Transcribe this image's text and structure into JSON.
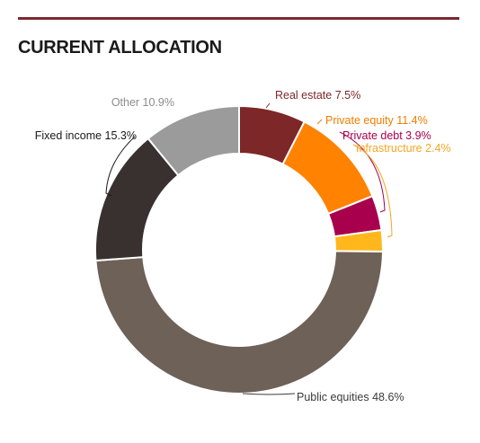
{
  "header": {
    "title": "CURRENT ALLOCATION"
  },
  "chart_data": {
    "type": "pie",
    "title": "CURRENT ALLOCATION",
    "unit": "%",
    "segments": [
      {
        "name": "Real estate",
        "value": 7.5,
        "label": "Real estate 7.5%",
        "color": "#7d2728",
        "label_color": "#7d2728"
      },
      {
        "name": "Private equity",
        "value": 11.4,
        "label": "Private equity 11.4%",
        "color": "#ff8200",
        "label_color": "#f07d00"
      },
      {
        "name": "Private debt",
        "value": 3.9,
        "label": "Private debt 3.9%",
        "color": "#a8004c",
        "label_color": "#a8004c"
      },
      {
        "name": "Infrastructure",
        "value": 2.4,
        "label": "Infrastructure 2.4%",
        "color": "#ffb71b",
        "label_color": "#f5a623"
      },
      {
        "name": "Public equities",
        "value": 48.6,
        "label": "Public equities 48.6%",
        "color": "#6d6158",
        "label_color": "#3a3a3a"
      },
      {
        "name": "Fixed income",
        "value": 15.3,
        "label": "Fixed income 15.3%",
        "color": "#393030",
        "label_color": "#1a1a1a"
      },
      {
        "name": "Other",
        "value": 10.9,
        "label": "Other 10.9%",
        "color": "#9b9b9b",
        "label_color": "#8c8c8c"
      }
    ]
  }
}
